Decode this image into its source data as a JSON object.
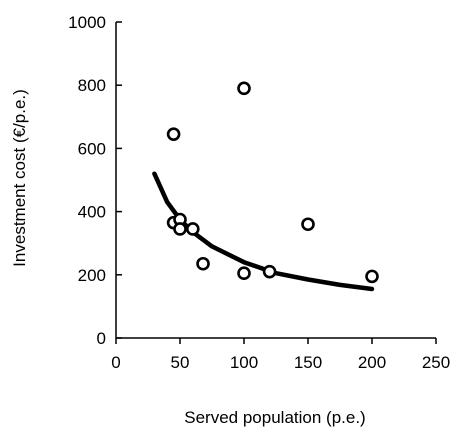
{
  "chart_data": {
    "type": "scatter",
    "title": "",
    "xlabel": "Served population (p.e.)",
    "ylabel": "Investment cost (€/p.e.)",
    "xlim": [
      0,
      250
    ],
    "ylim": [
      0,
      1000
    ],
    "xticks": [
      0,
      50,
      100,
      150,
      200,
      250
    ],
    "yticks": [
      0,
      200,
      400,
      600,
      800,
      1000
    ],
    "grid": false,
    "legend": "none",
    "marker_color": "#000000",
    "series": [
      {
        "type": "scatter",
        "marker": "open-circle",
        "points": [
          {
            "x": 45,
            "y": 645
          },
          {
            "x": 45,
            "y": 365
          },
          {
            "x": 50,
            "y": 375
          },
          {
            "x": 50,
            "y": 345
          },
          {
            "x": 60,
            "y": 345
          },
          {
            "x": 68,
            "y": 235
          },
          {
            "x": 100,
            "y": 790
          },
          {
            "x": 100,
            "y": 205
          },
          {
            "x": 120,
            "y": 210
          },
          {
            "x": 150,
            "y": 360
          },
          {
            "x": 200,
            "y": 195
          }
        ]
      },
      {
        "type": "line",
        "style": "thick-solid",
        "points": [
          {
            "x": 30,
            "y": 520
          },
          {
            "x": 40,
            "y": 430
          },
          {
            "x": 50,
            "y": 375
          },
          {
            "x": 60,
            "y": 335
          },
          {
            "x": 75,
            "y": 290
          },
          {
            "x": 100,
            "y": 240
          },
          {
            "x": 125,
            "y": 205
          },
          {
            "x": 150,
            "y": 185
          },
          {
            "x": 175,
            "y": 168
          },
          {
            "x": 200,
            "y": 155
          }
        ]
      }
    ]
  }
}
